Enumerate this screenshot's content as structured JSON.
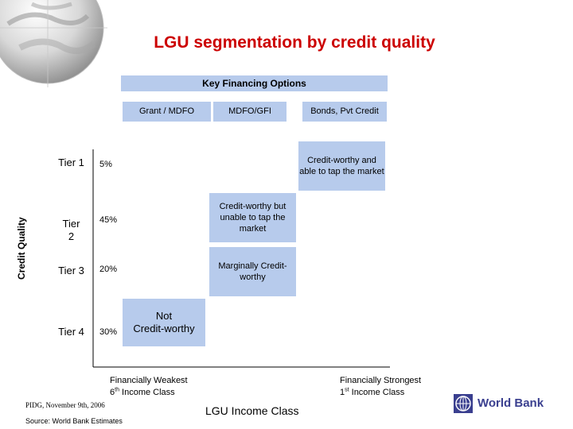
{
  "title": "LGU segmentation by credit quality",
  "financing": {
    "header": "Key Financing Options",
    "columns": [
      "Grant / MDFO",
      "MDFO/GFI",
      "Bonds, Pvt Credit"
    ]
  },
  "y_axis_label": "Credit Quality",
  "x_axis_label": "LGU Income Class",
  "tiers": [
    {
      "name": "Tier 1",
      "pct": "5%",
      "description": "Credit-worthy and able to tap the market"
    },
    {
      "name_line1": "Tier",
      "name_line2": "2",
      "pct": "45%",
      "description": "Credit-worthy but unable to tap the market"
    },
    {
      "name": "Tier 3",
      "pct": "20%",
      "description": "Marginally Credit-worthy"
    },
    {
      "name": "Tier 4",
      "pct": "30%",
      "description_line1": "Not",
      "description_line2": "Credit-worthy"
    }
  ],
  "x_left": {
    "line1": "Financially Weakest",
    "line2_num": "6",
    "line2_sup": "th",
    "line2_rest": " Income Class"
  },
  "x_right": {
    "line1": "Financially Strongest",
    "line2_num": "1",
    "line2_sup": "st",
    "line2_rest": " Income Class"
  },
  "footer_note": "PIDG, November 9th, 2006",
  "source_note": "Source: World Bank Estimates",
  "logo_text": "World Bank",
  "colors": {
    "title": "#cc0000",
    "box_fill": "#b7cbec",
    "logo": "#3a3f8f"
  }
}
